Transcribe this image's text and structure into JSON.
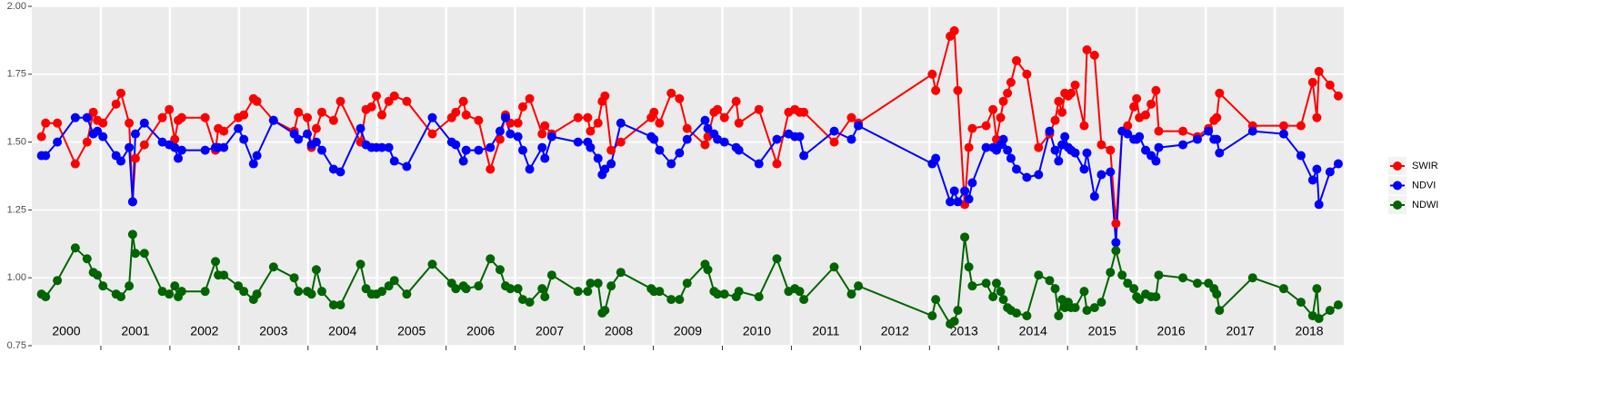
{
  "chart_data": {
    "type": "line",
    "x": [
      2000.14,
      2000.2,
      2000.37,
      2000.63,
      2000.8,
      2000.89,
      2000.95,
      2001.03,
      2001.22,
      2001.29,
      2001.41,
      2001.46,
      2001.5,
      2001.63,
      2001.89,
      2001.99,
      2002.07,
      2002.12,
      2002.17,
      2002.51,
      2002.66,
      2002.7,
      2002.78,
      2002.99,
      2003.07,
      2003.21,
      2003.26,
      2003.5,
      2003.8,
      2003.86,
      2003.99,
      2004.05,
      2004.12,
      2004.2,
      2004.37,
      2004.47,
      2004.76,
      2004.84,
      2004.92,
      2004.99,
      2005.07,
      2005.17,
      2005.25,
      2005.43,
      2005.8,
      2006.08,
      2006.14,
      2006.25,
      2006.29,
      2006.47,
      2006.64,
      2006.78,
      2006.86,
      2006.93,
      2007.04,
      2007.11,
      2007.21,
      2007.39,
      2007.43,
      2007.53,
      2007.91,
      2008.05,
      2008.09,
      2008.2,
      2008.26,
      2008.3,
      2008.39,
      2008.53,
      2008.97,
      2009.01,
      2009.09,
      2009.26,
      2009.38,
      2009.49,
      2009.75,
      2009.79,
      2009.88,
      2009.93,
      2010.03,
      2010.2,
      2010.24,
      2010.53,
      2010.79,
      2010.96,
      2011.05,
      2011.12,
      2011.18,
      2011.62,
      2011.87,
      2011.97,
      2013.04,
      2013.09,
      2013.3,
      2013.36,
      2013.41,
      2013.51,
      2013.57,
      2013.62,
      2013.82,
      2013.92,
      2013.97,
      2014.03,
      2014.07,
      2014.13,
      2014.18,
      2014.26,
      2014.41,
      2014.58,
      2014.74,
      2014.82,
      2014.87,
      2014.92,
      2014.96,
      2015.01,
      2015.05,
      2015.11,
      2015.24,
      2015.28,
      2015.39,
      2015.49,
      2015.62,
      2015.7,
      2015.79,
      2015.87,
      2015.96,
      2016.0,
      2016.04,
      2016.13,
      2016.21,
      2016.28,
      2016.32,
      2016.67,
      2016.88,
      2017.04,
      2017.12,
      2017.16,
      2017.2,
      2017.68,
      2018.13,
      2018.38,
      2018.55,
      2018.61,
      2018.64,
      2018.8,
      2018.92
    ],
    "series": [
      {
        "name": "SWIR",
        "color": "#ff0000",
        "values": [
          1.52,
          1.57,
          1.57,
          1.42,
          1.5,
          1.61,
          1.58,
          1.57,
          1.64,
          1.68,
          1.57,
          1.28,
          1.44,
          1.49,
          1.59,
          1.62,
          1.51,
          1.58,
          1.59,
          1.59,
          1.47,
          1.55,
          1.54,
          1.59,
          1.6,
          1.66,
          1.65,
          1.58,
          1.54,
          1.61,
          1.59,
          1.48,
          1.55,
          1.61,
          1.58,
          1.65,
          1.5,
          1.62,
          1.63,
          1.67,
          1.6,
          1.65,
          1.67,
          1.65,
          1.53,
          1.59,
          1.61,
          1.65,
          1.6,
          1.58,
          1.4,
          1.51,
          1.6,
          1.57,
          1.57,
          1.63,
          1.66,
          1.53,
          1.56,
          1.53,
          1.59,
          1.59,
          1.54,
          1.57,
          1.65,
          1.67,
          1.47,
          1.5,
          1.59,
          1.61,
          1.57,
          1.68,
          1.66,
          1.55,
          1.49,
          1.52,
          1.61,
          1.62,
          1.59,
          1.65,
          1.57,
          1.62,
          1.42,
          1.61,
          1.62,
          1.61,
          1.61,
          1.5,
          1.59,
          1.57,
          1.75,
          1.69,
          1.89,
          1.91,
          1.69,
          1.27,
          1.48,
          1.55,
          1.56,
          1.62,
          1.51,
          1.59,
          1.65,
          1.68,
          1.72,
          1.8,
          1.75,
          1.48,
          1.53,
          1.58,
          1.65,
          1.61,
          1.68,
          1.67,
          1.68,
          1.71,
          1.56,
          1.84,
          1.82,
          1.49,
          1.47,
          1.2,
          1.54,
          1.56,
          1.63,
          1.66,
          1.59,
          1.6,
          1.64,
          1.69,
          1.54,
          1.54,
          1.52,
          1.55,
          1.58,
          1.59,
          1.68,
          1.56,
          1.56,
          1.56,
          1.72,
          1.59,
          1.76,
          1.71,
          1.67
        ]
      },
      {
        "name": "NDVI",
        "color": "#0000ff",
        "values": [
          1.45,
          1.45,
          1.5,
          1.59,
          1.59,
          1.53,
          1.54,
          1.52,
          1.45,
          1.43,
          1.48,
          1.28,
          1.53,
          1.57,
          1.5,
          1.49,
          1.48,
          1.44,
          1.47,
          1.47,
          1.48,
          1.48,
          1.48,
          1.55,
          1.51,
          1.42,
          1.45,
          1.58,
          1.53,
          1.51,
          1.53,
          1.49,
          1.5,
          1.47,
          1.4,
          1.39,
          1.55,
          1.49,
          1.48,
          1.48,
          1.48,
          1.48,
          1.43,
          1.41,
          1.59,
          1.5,
          1.49,
          1.43,
          1.47,
          1.47,
          1.48,
          1.54,
          1.59,
          1.53,
          1.52,
          1.47,
          1.4,
          1.48,
          1.44,
          1.52,
          1.5,
          1.5,
          1.48,
          1.44,
          1.38,
          1.4,
          1.42,
          1.57,
          1.52,
          1.51,
          1.47,
          1.42,
          1.46,
          1.51,
          1.58,
          1.55,
          1.53,
          1.51,
          1.5,
          1.48,
          1.47,
          1.42,
          1.51,
          1.53,
          1.52,
          1.52,
          1.45,
          1.54,
          1.51,
          1.56,
          1.42,
          1.44,
          1.28,
          1.32,
          1.28,
          1.32,
          1.29,
          1.35,
          1.48,
          1.48,
          1.47,
          1.49,
          1.51,
          1.47,
          1.44,
          1.4,
          1.37,
          1.38,
          1.54,
          1.47,
          1.43,
          1.49,
          1.52,
          1.48,
          1.47,
          1.46,
          1.4,
          1.46,
          1.3,
          1.38,
          1.39,
          1.13,
          1.54,
          1.53,
          1.51,
          1.51,
          1.52,
          1.47,
          1.45,
          1.43,
          1.48,
          1.49,
          1.51,
          1.54,
          1.51,
          1.51,
          1.46,
          1.54,
          1.53,
          1.45,
          1.36,
          1.4,
          1.27,
          1.39,
          1.42
        ]
      },
      {
        "name": "NDWI",
        "color": "#006400",
        "values": [
          0.94,
          0.93,
          0.99,
          1.11,
          1.07,
          1.02,
          1.01,
          0.97,
          0.94,
          0.93,
          0.97,
          1.16,
          1.09,
          1.09,
          0.95,
          0.94,
          0.97,
          0.93,
          0.95,
          0.95,
          1.06,
          1.01,
          1.01,
          0.97,
          0.95,
          0.92,
          0.94,
          1.04,
          1.0,
          0.95,
          0.95,
          0.94,
          1.03,
          0.95,
          0.9,
          0.9,
          1.05,
          0.96,
          0.94,
          0.94,
          0.95,
          0.97,
          0.99,
          0.94,
          1.05,
          0.98,
          0.96,
          0.97,
          0.96,
          0.97,
          1.07,
          1.03,
          0.97,
          0.96,
          0.96,
          0.92,
          0.91,
          0.96,
          0.93,
          1.01,
          0.95,
          0.95,
          0.98,
          0.98,
          0.87,
          0.88,
          0.97,
          1.02,
          0.96,
          0.95,
          0.95,
          0.92,
          0.92,
          0.98,
          1.05,
          1.03,
          0.95,
          0.94,
          0.94,
          0.93,
          0.95,
          0.93,
          1.07,
          0.95,
          0.96,
          0.95,
          0.92,
          1.04,
          0.94,
          0.97,
          0.86,
          0.92,
          0.83,
          0.84,
          0.88,
          1.15,
          1.04,
          0.97,
          0.98,
          0.93,
          0.98,
          0.95,
          0.92,
          0.89,
          0.88,
          0.87,
          0.86,
          1.01,
          0.99,
          0.96,
          0.86,
          0.92,
          0.89,
          0.91,
          0.89,
          0.89,
          0.95,
          0.88,
          0.89,
          0.91,
          1.02,
          1.1,
          1.01,
          0.98,
          0.96,
          0.93,
          0.92,
          0.94,
          0.93,
          0.93,
          1.01,
          1.0,
          0.98,
          0.98,
          0.96,
          0.94,
          0.88,
          1.0,
          0.96,
          0.91,
          0.86,
          0.96,
          0.85,
          0.88,
          0.9
        ]
      }
    ],
    "xlim": [
      2000,
      2019
    ],
    "xticks": [
      2001,
      2002,
      2003,
      2004,
      2005,
      2006,
      2007,
      2008,
      2009,
      2010,
      2011,
      2012,
      2013,
      2014,
      2015,
      2016,
      2017,
      2018
    ],
    "year_labels": [
      "2000",
      "2001",
      "2002",
      "2003",
      "2004",
      "2005",
      "2006",
      "2007",
      "2008",
      "2009",
      "2010",
      "2011",
      "2012",
      "2013",
      "2014",
      "2015",
      "2016",
      "2017",
      "2018"
    ],
    "ylim": [
      0.75,
      2
    ],
    "yticks": [
      0.75,
      {
        "value": 1,
        "label": "1.00"
      },
      1.25,
      {
        "value": 1.5,
        "label": "1.50"
      },
      1.75,
      {
        "value": 2,
        "label": "2.00"
      }
    ],
    "grid": true,
    "legend": "right"
  }
}
